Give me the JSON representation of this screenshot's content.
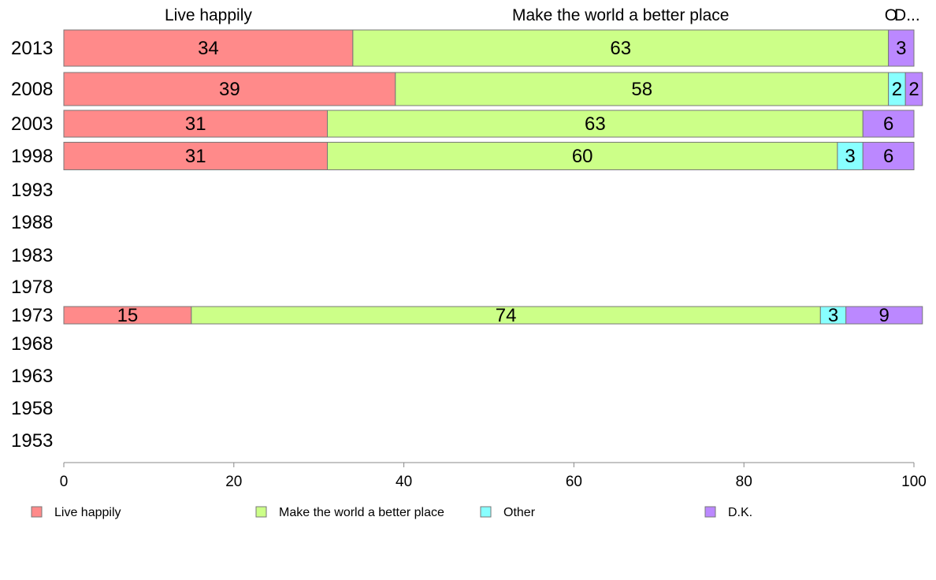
{
  "chart_data": {
    "type": "bar",
    "orientation": "horizontal",
    "stacked": true,
    "categories": [
      "2013",
      "2008",
      "2003",
      "1998",
      "1993",
      "1988",
      "1983",
      "1978",
      "1973",
      "1968",
      "1963",
      "1958",
      "1953"
    ],
    "series": [
      {
        "name": "Live happily",
        "color": "#ff8a8a",
        "values": [
          34,
          39,
          31,
          31,
          null,
          null,
          null,
          null,
          15,
          null,
          null,
          null,
          null
        ]
      },
      {
        "name": "Make the world a better place",
        "color": "#ccff88",
        "values": [
          63,
          58,
          63,
          60,
          null,
          null,
          null,
          null,
          74,
          null,
          null,
          null,
          null
        ]
      },
      {
        "name": "Other",
        "color": "#88ffff",
        "values": [
          0,
          2,
          0,
          3,
          null,
          null,
          null,
          null,
          3,
          null,
          null,
          null,
          null
        ]
      },
      {
        "name": "D.K.",
        "color": "#bb88ff",
        "values": [
          3,
          2,
          6,
          6,
          null,
          null,
          null,
          null,
          9,
          null,
          null,
          null,
          null
        ]
      }
    ],
    "top_labels": [
      "Live happily",
      "Make the world a better place",
      "Other",
      "D.K."
    ],
    "top_labels_display": [
      "Live happily",
      "Make the world a better place",
      "O",
      "D..."
    ],
    "xlim": [
      0,
      100
    ],
    "xticks": [
      0,
      20,
      40,
      60,
      80,
      100
    ],
    "grid": false,
    "legend_position": "bottom"
  }
}
